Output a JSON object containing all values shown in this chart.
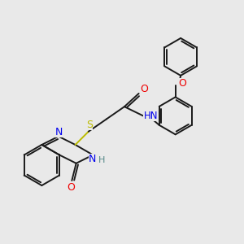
{
  "bg_color": "#e9e9e9",
  "bond_color": "#1a1a1a",
  "bond_width": 1.4,
  "dbo": 0.09,
  "N_color": "#0000ee",
  "O_color": "#ee0000",
  "S_color": "#bbbb00",
  "H_color": "#558888",
  "font_size": 8.0,
  "fig_size": [
    3.0,
    3.0
  ],
  "dpi": 100,
  "xlim": [
    0,
    10
  ],
  "ylim": [
    0,
    10
  ]
}
